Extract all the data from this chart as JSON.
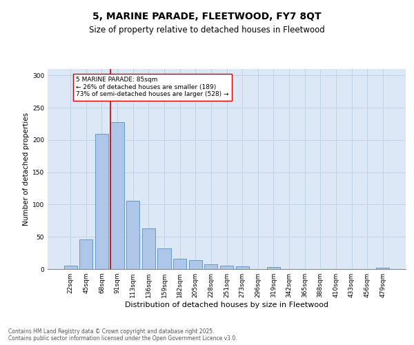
{
  "title1": "5, MARINE PARADE, FLEETWOOD, FY7 8QT",
  "title2": "Size of property relative to detached houses in Fleetwood",
  "xlabel": "Distribution of detached houses by size in Fleetwood",
  "ylabel": "Number of detached properties",
  "categories": [
    "22sqm",
    "45sqm",
    "68sqm",
    "91sqm",
    "113sqm",
    "136sqm",
    "159sqm",
    "182sqm",
    "205sqm",
    "228sqm",
    "251sqm",
    "273sqm",
    "296sqm",
    "319sqm",
    "342sqm",
    "365sqm",
    "388sqm",
    "410sqm",
    "433sqm",
    "456sqm",
    "479sqm"
  ],
  "values": [
    5,
    46,
    210,
    228,
    106,
    63,
    32,
    16,
    14,
    7,
    5,
    4,
    0,
    3,
    0,
    0,
    0,
    0,
    0,
    0,
    2
  ],
  "bar_color": "#aec6e8",
  "bar_edge_color": "#5a8fc2",
  "vline_x": 2.57,
  "vline_color": "#cc0000",
  "annotation_text": "5 MARINE PARADE: 85sqm\n← 26% of detached houses are smaller (189)\n73% of semi-detached houses are larger (528) →",
  "annotation_box_color": "#ffffff",
  "annotation_box_edge": "#cc0000",
  "annotation_fontsize": 6.5,
  "ylim": [
    0,
    310
  ],
  "yticks": [
    0,
    50,
    100,
    150,
    200,
    250,
    300
  ],
  "grid_color": "#c8d8e8",
  "bg_color": "#dce8f5",
  "footer_text": "Contains HM Land Registry data © Crown copyright and database right 2025.\nContains public sector information licensed under the Open Government Licence v3.0.",
  "title_fontsize": 10,
  "subtitle_fontsize": 8.5,
  "ylabel_fontsize": 7.5,
  "xlabel_fontsize": 8,
  "tick_fontsize": 6.5,
  "footer_fontsize": 5.5
}
